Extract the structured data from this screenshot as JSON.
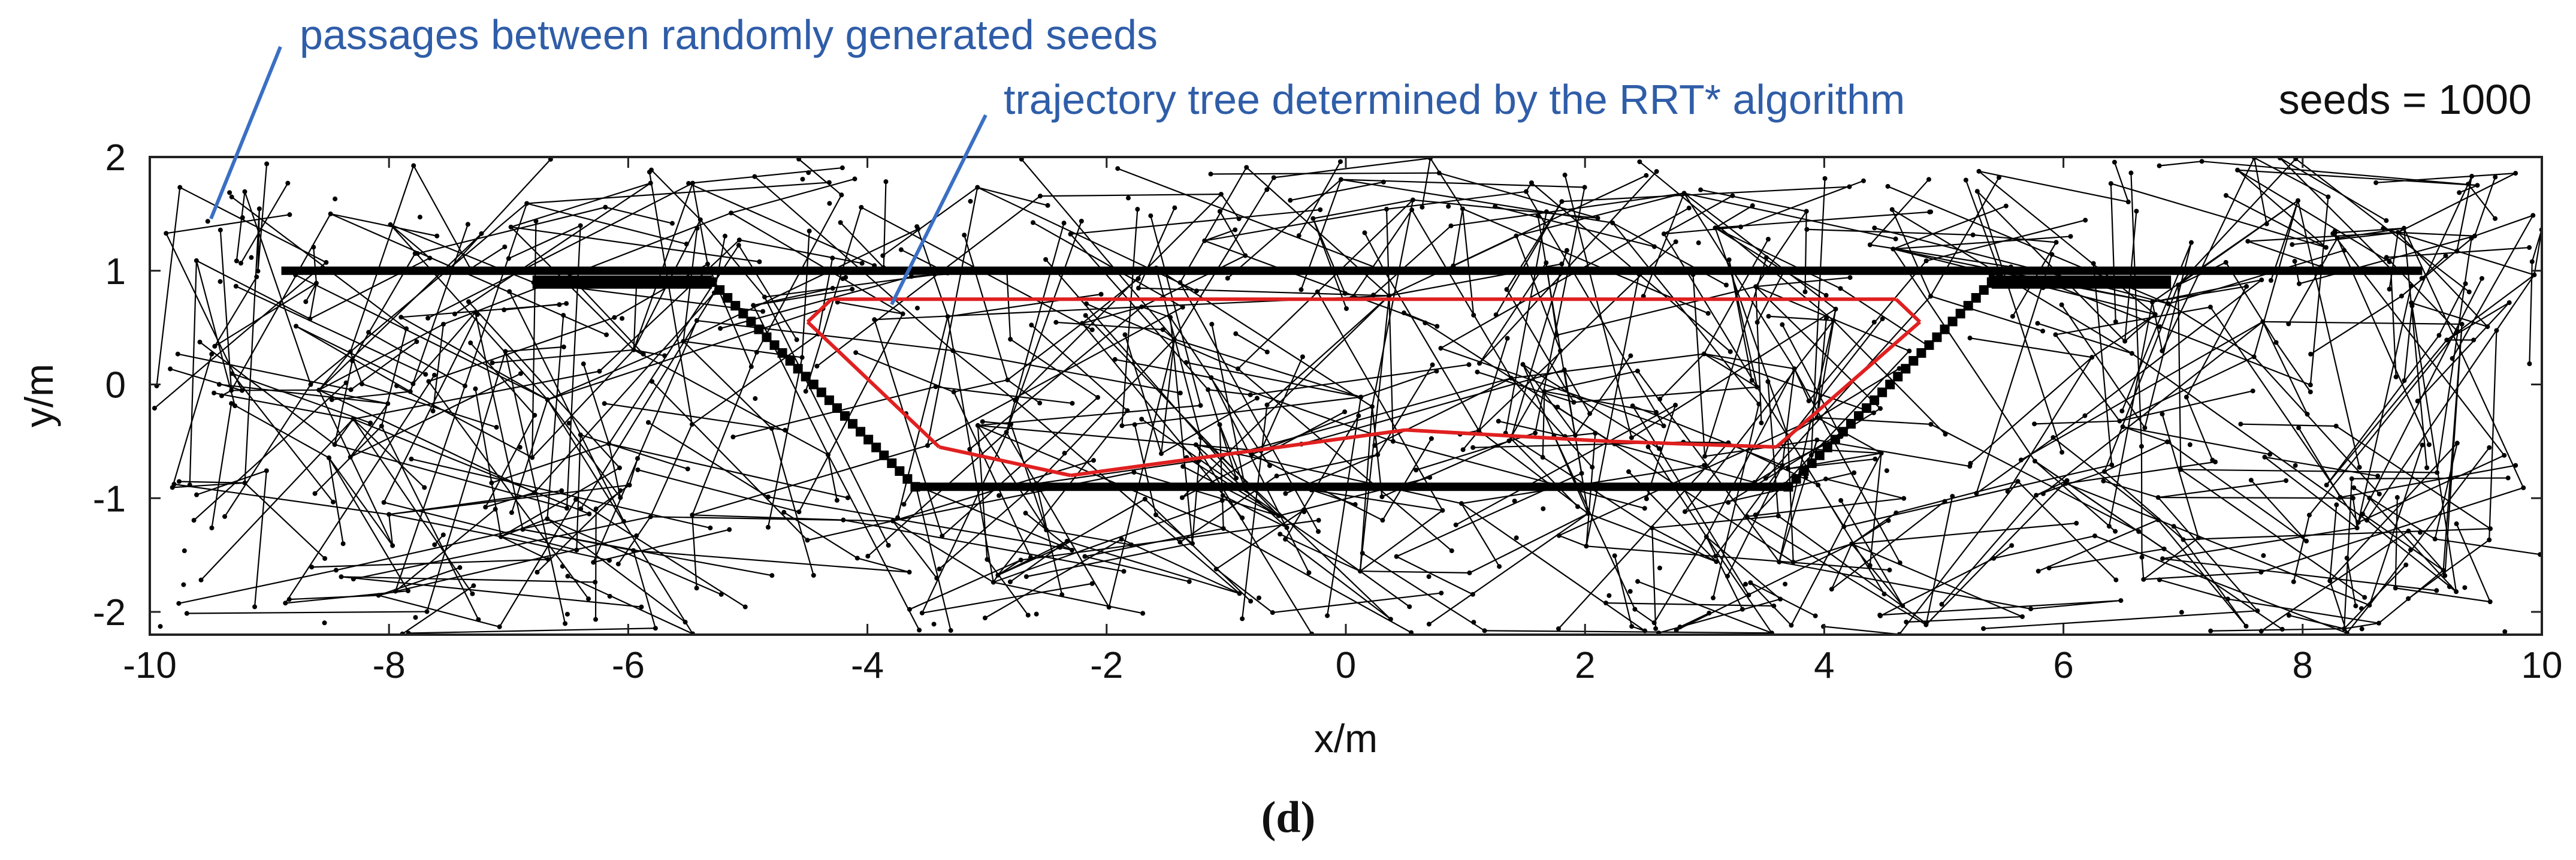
{
  "panel_label": "(d)",
  "chart_data": {
    "type": "scatter",
    "title": "",
    "xlabel": "x/m",
    "ylabel": "y/m",
    "xlim": [
      -10,
      10
    ],
    "ylim": [
      -2.2,
      2.0
    ],
    "xticks": [
      -10,
      -8,
      -6,
      -4,
      -2,
      0,
      2,
      4,
      6,
      8,
      10
    ],
    "yticks": [
      -2,
      -1,
      0,
      1,
      2
    ],
    "grid": false,
    "seeds_label": "seeds = 1000",
    "annotations": [
      "passages between randomly generated seeds",
      "trajectory tree determined by the RRT* algorithm"
    ],
    "obstacle_boundary": {
      "color": "#000000",
      "top_wall": [
        [
          -8.9,
          1.0
        ],
        [
          9.0,
          1.0
        ]
      ],
      "inner_polygon": [
        [
          -5.3,
          0.9
        ],
        [
          -3.6,
          -0.9
        ],
        [
          3.7,
          -0.9
        ],
        [
          5.4,
          0.9
        ]
      ]
    },
    "rrt_path": {
      "color": "#e02020",
      "points": [
        [
          -4.3,
          0.75
        ],
        [
          -4.5,
          0.55
        ],
        [
          -3.4,
          -0.55
        ],
        [
          -2.3,
          -0.8
        ],
        [
          0.5,
          -0.4
        ],
        [
          2.2,
          -0.5
        ],
        [
          3.6,
          -0.55
        ],
        [
          4.8,
          0.55
        ],
        [
          4.6,
          0.75
        ],
        [
          -4.3,
          0.75
        ]
      ]
    },
    "tree_color": "#000000"
  }
}
